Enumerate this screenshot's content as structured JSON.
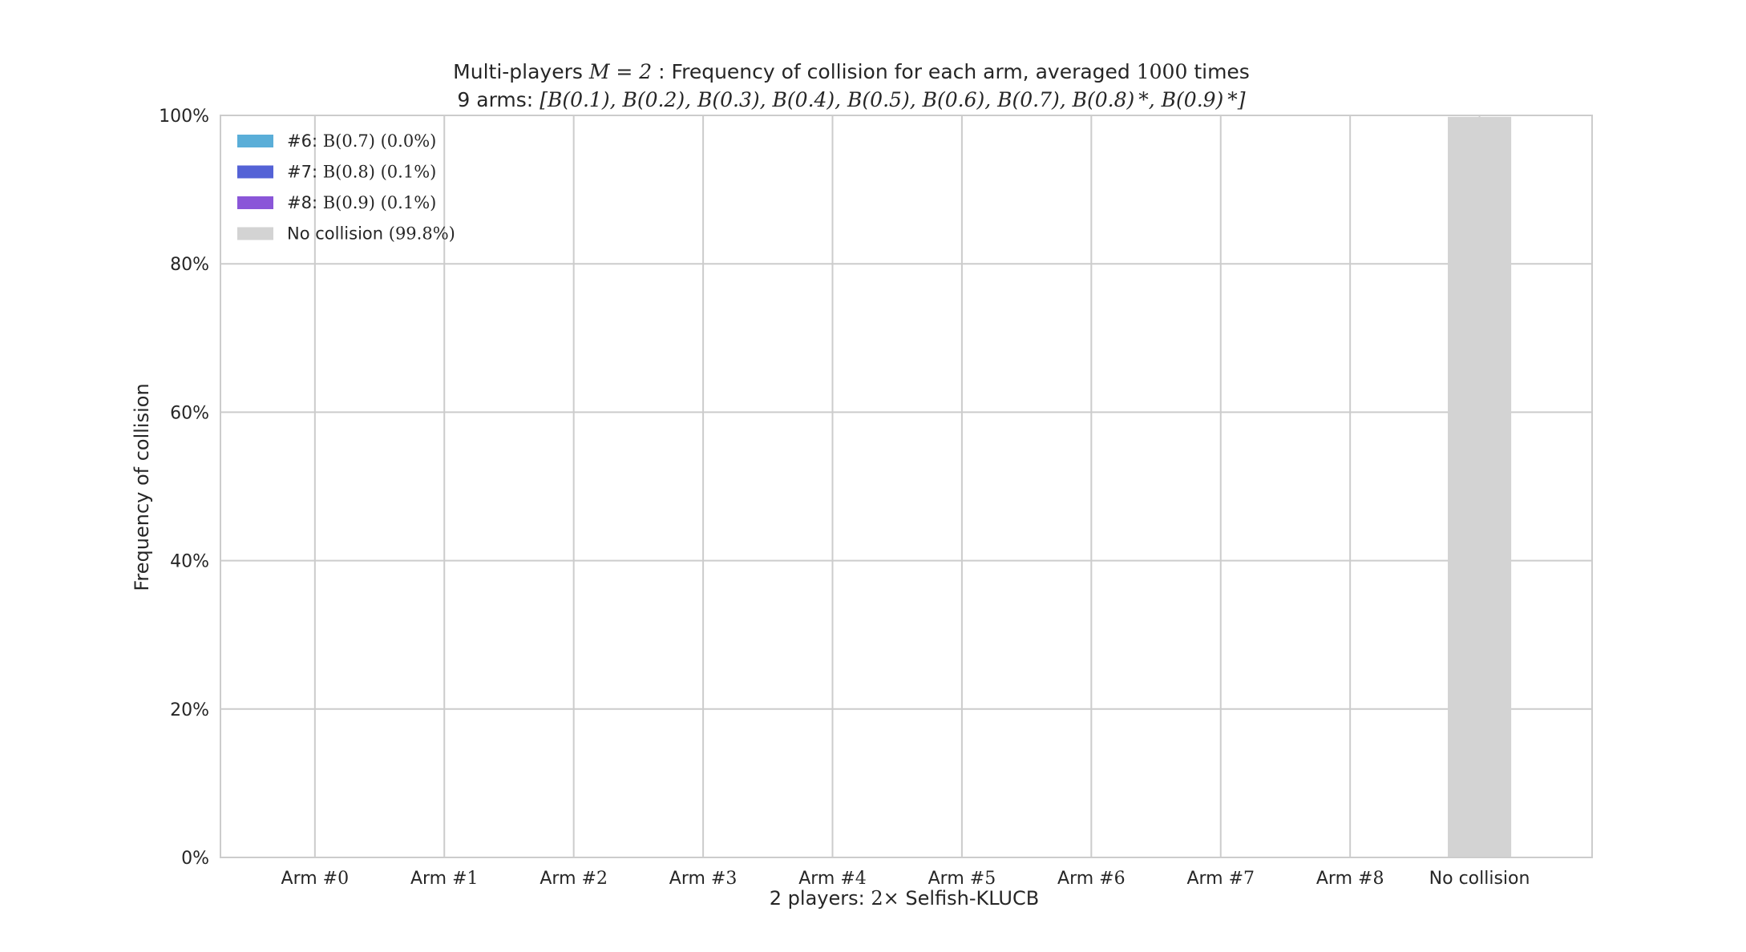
{
  "chart_data": {
    "type": "bar",
    "title": {
      "line1_prefix": "Multi-players ",
      "line1_math": "M = 2",
      "line1_mid": " : Frequency of collision for each arm, averaged ",
      "line1_math2": "1000",
      "line1_suffix": " times",
      "line2_prefix": "9 arms: ",
      "line2_math": "[B(0.1), B(0.2), B(0.3), B(0.4), B(0.5), B(0.6), B(0.7), B(0.8) *, B(0.9) *]"
    },
    "xlabel": {
      "prefix": "2 players: ",
      "math": "2×",
      "suffix": " Selfish-KLUCB"
    },
    "ylabel": "Frequency of collision",
    "ylim": [
      0,
      1
    ],
    "yticks": [
      "0%",
      "20%",
      "40%",
      "60%",
      "80%",
      "100%"
    ],
    "categories": [
      {
        "prefix": "Arm #",
        "num": "0"
      },
      {
        "prefix": "Arm #",
        "num": "1"
      },
      {
        "prefix": "Arm #",
        "num": "2"
      },
      {
        "prefix": "Arm #",
        "num": "3"
      },
      {
        "prefix": "Arm #",
        "num": "4"
      },
      {
        "prefix": "Arm #",
        "num": "5"
      },
      {
        "prefix": "Arm #",
        "num": "6"
      },
      {
        "prefix": "Arm #",
        "num": "7"
      },
      {
        "prefix": "Arm #",
        "num": "8"
      },
      {
        "prefix": "No collision",
        "num": ""
      }
    ],
    "values": [
      0,
      0,
      0,
      0,
      0,
      0,
      0.0,
      0.001,
      0.001,
      0.998
    ],
    "bar_colors": [
      "#4fa3d8",
      "#4fa3d8",
      "#4fa3d8",
      "#4fa3d8",
      "#4fa3d8",
      "#4fa3d8",
      "#5aaed8",
      "#5462d6",
      "#8a56d8",
      "#d3d3d3"
    ],
    "legend": {
      "placement": "top-left",
      "entries": [
        {
          "prefix": "#6: ",
          "math": "B(0.7) (0.0%)",
          "suffix": "",
          "color": "#5aaed8"
        },
        {
          "prefix": "#7: ",
          "math": "B(0.8) (0.1%)",
          "suffix": "",
          "color": "#5462d6"
        },
        {
          "prefix": "#8: ",
          "math": "B(0.9) (0.1%)",
          "suffix": "",
          "color": "#8a56d8"
        },
        {
          "prefix": "No collision ",
          "math": "(99.8%)",
          "suffix": "",
          "color": "#d3d3d3"
        }
      ]
    },
    "grid": true,
    "grid_color": "#cccccc",
    "text_color": "#262626"
  }
}
